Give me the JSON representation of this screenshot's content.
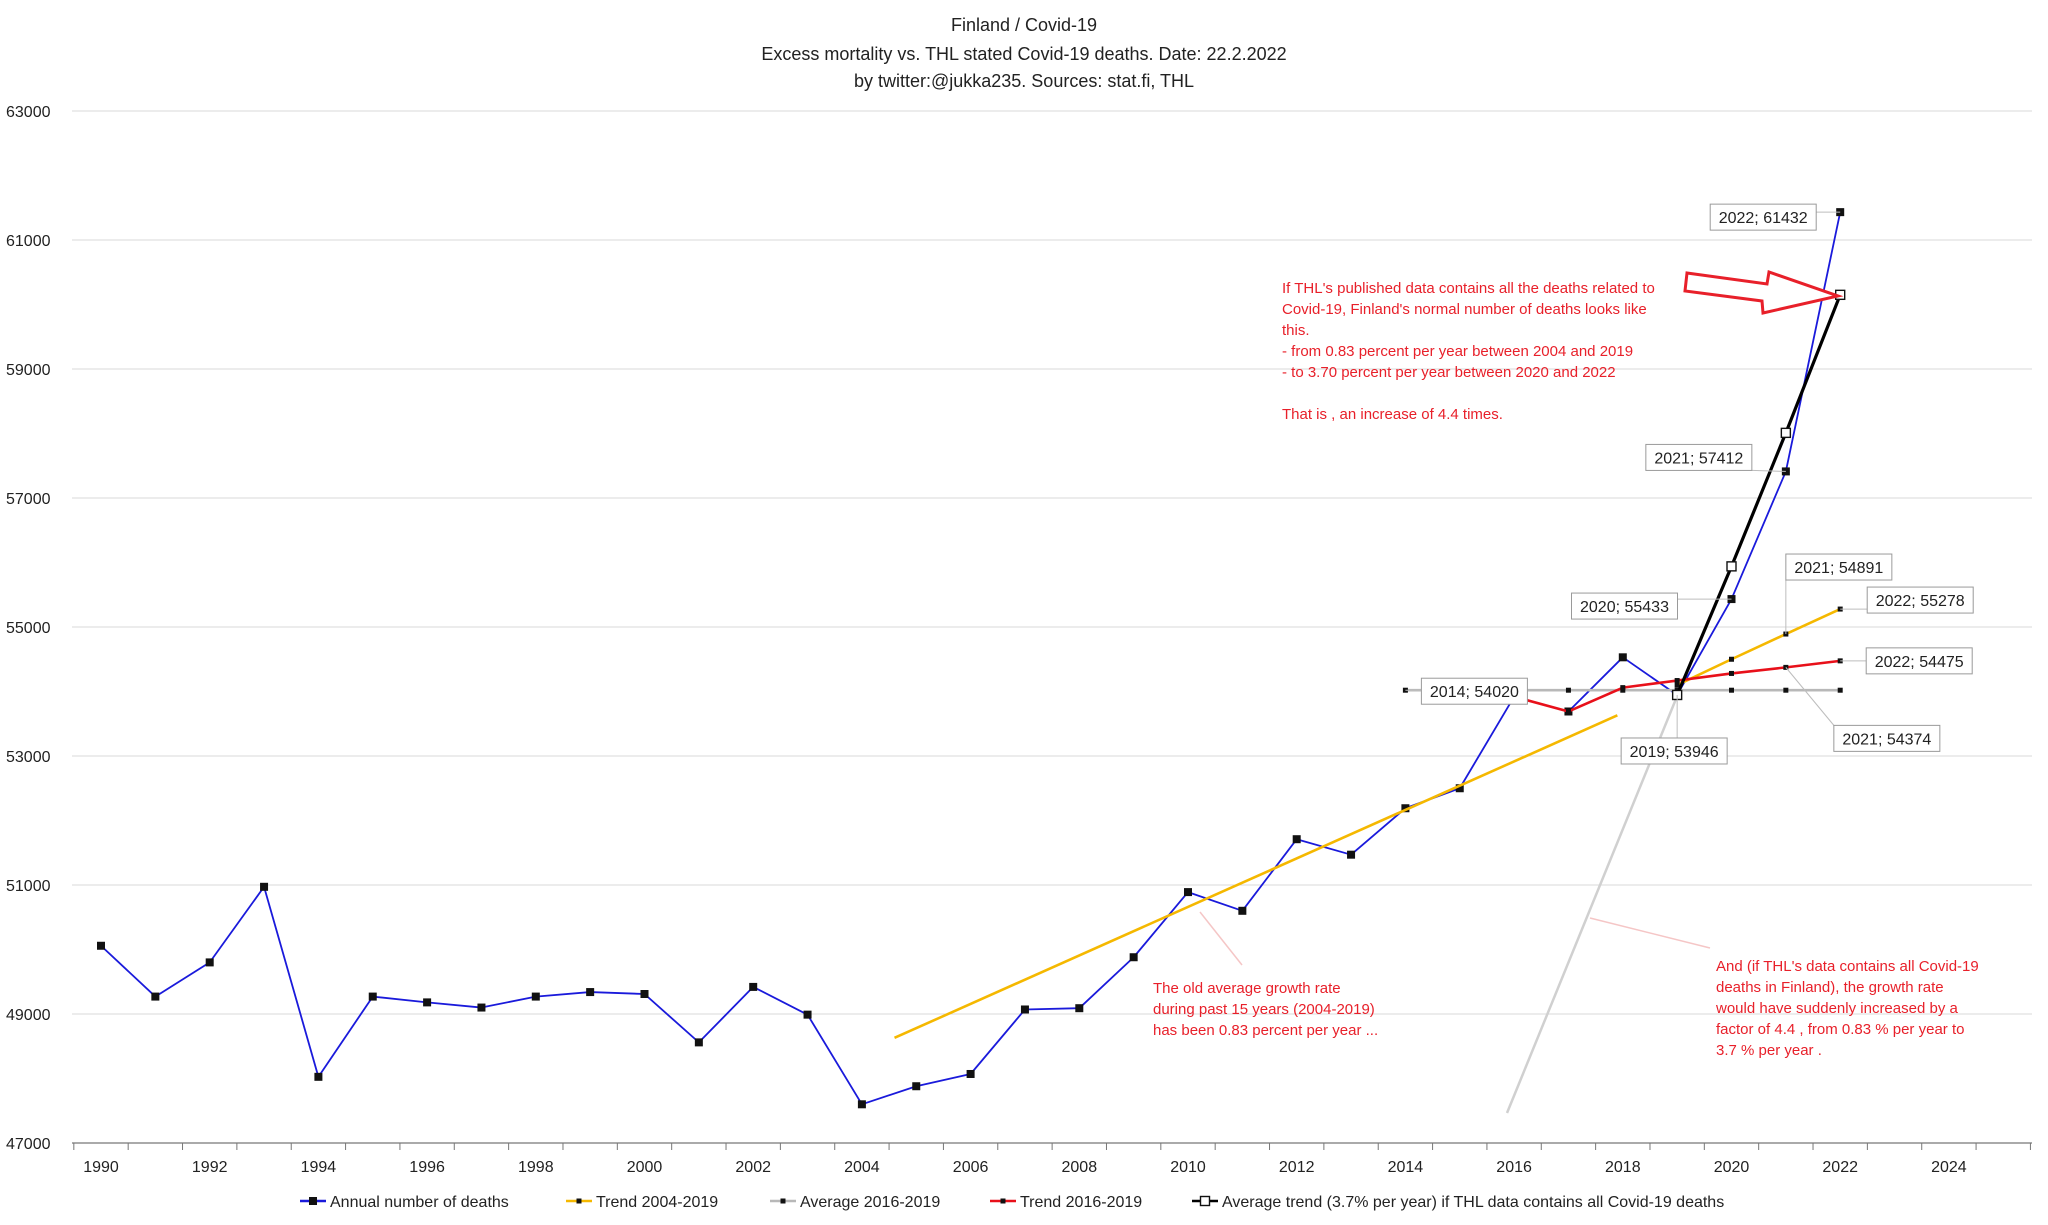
{
  "title_lines": [
    "Finland / Covid-19",
    "Excess mortality vs. THL stated Covid-19 deaths. Date: 22.2.2022",
    "by twitter:@jukka235.  Sources: stat.fi, THL"
  ],
  "colors": {
    "annual": "#1a1adb",
    "trend_2004_2019": "#f5b800",
    "average_2016_2019": "#b8b8b8",
    "trend_2016_2019": "#e8101a",
    "average_trend": "#000000",
    "annotation": "#e8202a",
    "grid": "#d9d9d9"
  },
  "chart_data": {
    "type": "line",
    "xlim": [
      1989.5,
      2026
    ],
    "ylim": [
      47000,
      63000
    ],
    "x_ticks": [
      "1990",
      "1992",
      "1994",
      "1996",
      "1998",
      "2000",
      "2002",
      "2004",
      "2006",
      "2008",
      "2010",
      "2012",
      "2014",
      "2016",
      "2018",
      "2020",
      "2022",
      "2024"
    ],
    "y_ticks": [
      "47000",
      "49000",
      "51000",
      "53000",
      "55000",
      "57000",
      "59000",
      "61000",
      "63000"
    ],
    "grid": "horizontal",
    "legend_position": "bottom",
    "series": [
      {
        "name": "Annual number of deaths",
        "key": "annual",
        "marker": "square-filled",
        "x": [
          1990,
          1991,
          1992,
          1993,
          1994,
          1995,
          1996,
          1997,
          1998,
          1999,
          2000,
          2001,
          2002,
          2003,
          2004,
          2005,
          2006,
          2007,
          2008,
          2009,
          2010,
          2011,
          2012,
          2013,
          2014,
          2015,
          2016,
          2017,
          2018,
          2019,
          2020,
          2021,
          2022
        ],
        "y": [
          50058,
          49270,
          49800,
          50972,
          48026,
          49270,
          49180,
          49100,
          49270,
          49340,
          49310,
          48560,
          49420,
          48990,
          47600,
          47880,
          48070,
          49070,
          49090,
          49880,
          50890,
          50600,
          51710,
          51470,
          52190,
          52500,
          53920,
          53690,
          54530,
          53946,
          55433,
          57412,
          61432
        ]
      },
      {
        "name": "Trend 2004-2019",
        "key": "trend_2004_2019",
        "marker": "line",
        "x": [
          2004.6,
          2017.9
        ],
        "y": [
          48630,
          53630
        ]
      },
      {
        "name": "Trend 2004-2019",
        "key": "trend_2004_2019",
        "marker": "square-small",
        "x": [
          2019,
          2020,
          2021,
          2022
        ],
        "y": [
          54100,
          54500,
          54891,
          55278
        ]
      },
      {
        "name": "Average 2016-2019",
        "key": "average_2016_2019",
        "marker": "square-small",
        "x": [
          2014,
          2016,
          2017,
          2018,
          2019,
          2020,
          2021,
          2022
        ],
        "y": [
          54020,
          54020,
          54020,
          54020,
          54020,
          54020,
          54020,
          54020
        ]
      },
      {
        "name": "Trend 2016-2019",
        "key": "trend_2016_2019",
        "marker": "square-small",
        "x": [
          2016,
          2017,
          2018,
          2019,
          2020,
          2021,
          2022
        ],
        "y": [
          53920,
          53690,
          54060,
          54170,
          54280,
          54374,
          54475
        ]
      },
      {
        "name": "Average trend (3.7% per year) if THL data contains all Covid-19 deaths",
        "key": "average_trend",
        "marker": "square-open",
        "x": [
          2019,
          2020,
          2021,
          2022
        ],
        "y": [
          53946,
          55940,
          58010,
          60150
        ]
      }
    ],
    "legend": [
      {
        "label": "Annual number of deaths",
        "key": "annual",
        "marker": "square-filled"
      },
      {
        "label": "Trend 2004-2019",
        "key": "trend_2004_2019",
        "marker": "square-small"
      },
      {
        "label": "Average 2016-2019",
        "key": "average_2016_2019",
        "marker": "square-small"
      },
      {
        "label": "Trend 2016-2019",
        "key": "trend_2016_2019",
        "marker": "square-small"
      },
      {
        "label": "Average trend (3.7% per year) if THL data contains all Covid-19 deaths",
        "key": "average_trend",
        "marker": "square-open"
      }
    ],
    "callouts": [
      {
        "text": "2022; 61432",
        "x": 2022,
        "y": 61432
      },
      {
        "text": "2021; 57412",
        "x": 2021,
        "y": 57412
      },
      {
        "text": "2020; 55433",
        "x": 2020,
        "y": 55433
      },
      {
        "text": "2021; 54891",
        "x": 2021,
        "y": 54891
      },
      {
        "text": "2022; 55278",
        "x": 2022,
        "y": 55278
      },
      {
        "text": "2014; 54020",
        "x": 2014,
        "y": 54020
      },
      {
        "text": "2022; 54475",
        "x": 2022,
        "y": 54475
      },
      {
        "text": "2019; 53946",
        "x": 2019,
        "y": 53946
      },
      {
        "text": "2021; 54374",
        "x": 2021,
        "y": 54374
      }
    ],
    "annotations": [
      {
        "key": "thl_note",
        "lines": [
          "If THL's published data contains all the deaths related to",
          "Covid-19, Finland's normal number of deaths looks like",
          "this.",
          "- from 0.83 percent per year between 2004 and 2019",
          "- to 3.70 percent per year between 2020 and 2022",
          "",
          " That is , an increase of 4.4 times."
        ]
      },
      {
        "key": "old_growth_note",
        "lines": [
          "The old average growth rate",
          "during past 15 years (2004-2019)",
          "has been 0.83 percent per year ..."
        ]
      },
      {
        "key": "sudden_growth_note",
        "lines": [
          "And (if THL's data contains all Covid-19",
          "deaths in Finland), the growth rate",
          "would have suddenly increased by a",
          "factor of 4.4 , from 0.83 % per year to",
          "3.7 % per year ."
        ]
      }
    ]
  }
}
